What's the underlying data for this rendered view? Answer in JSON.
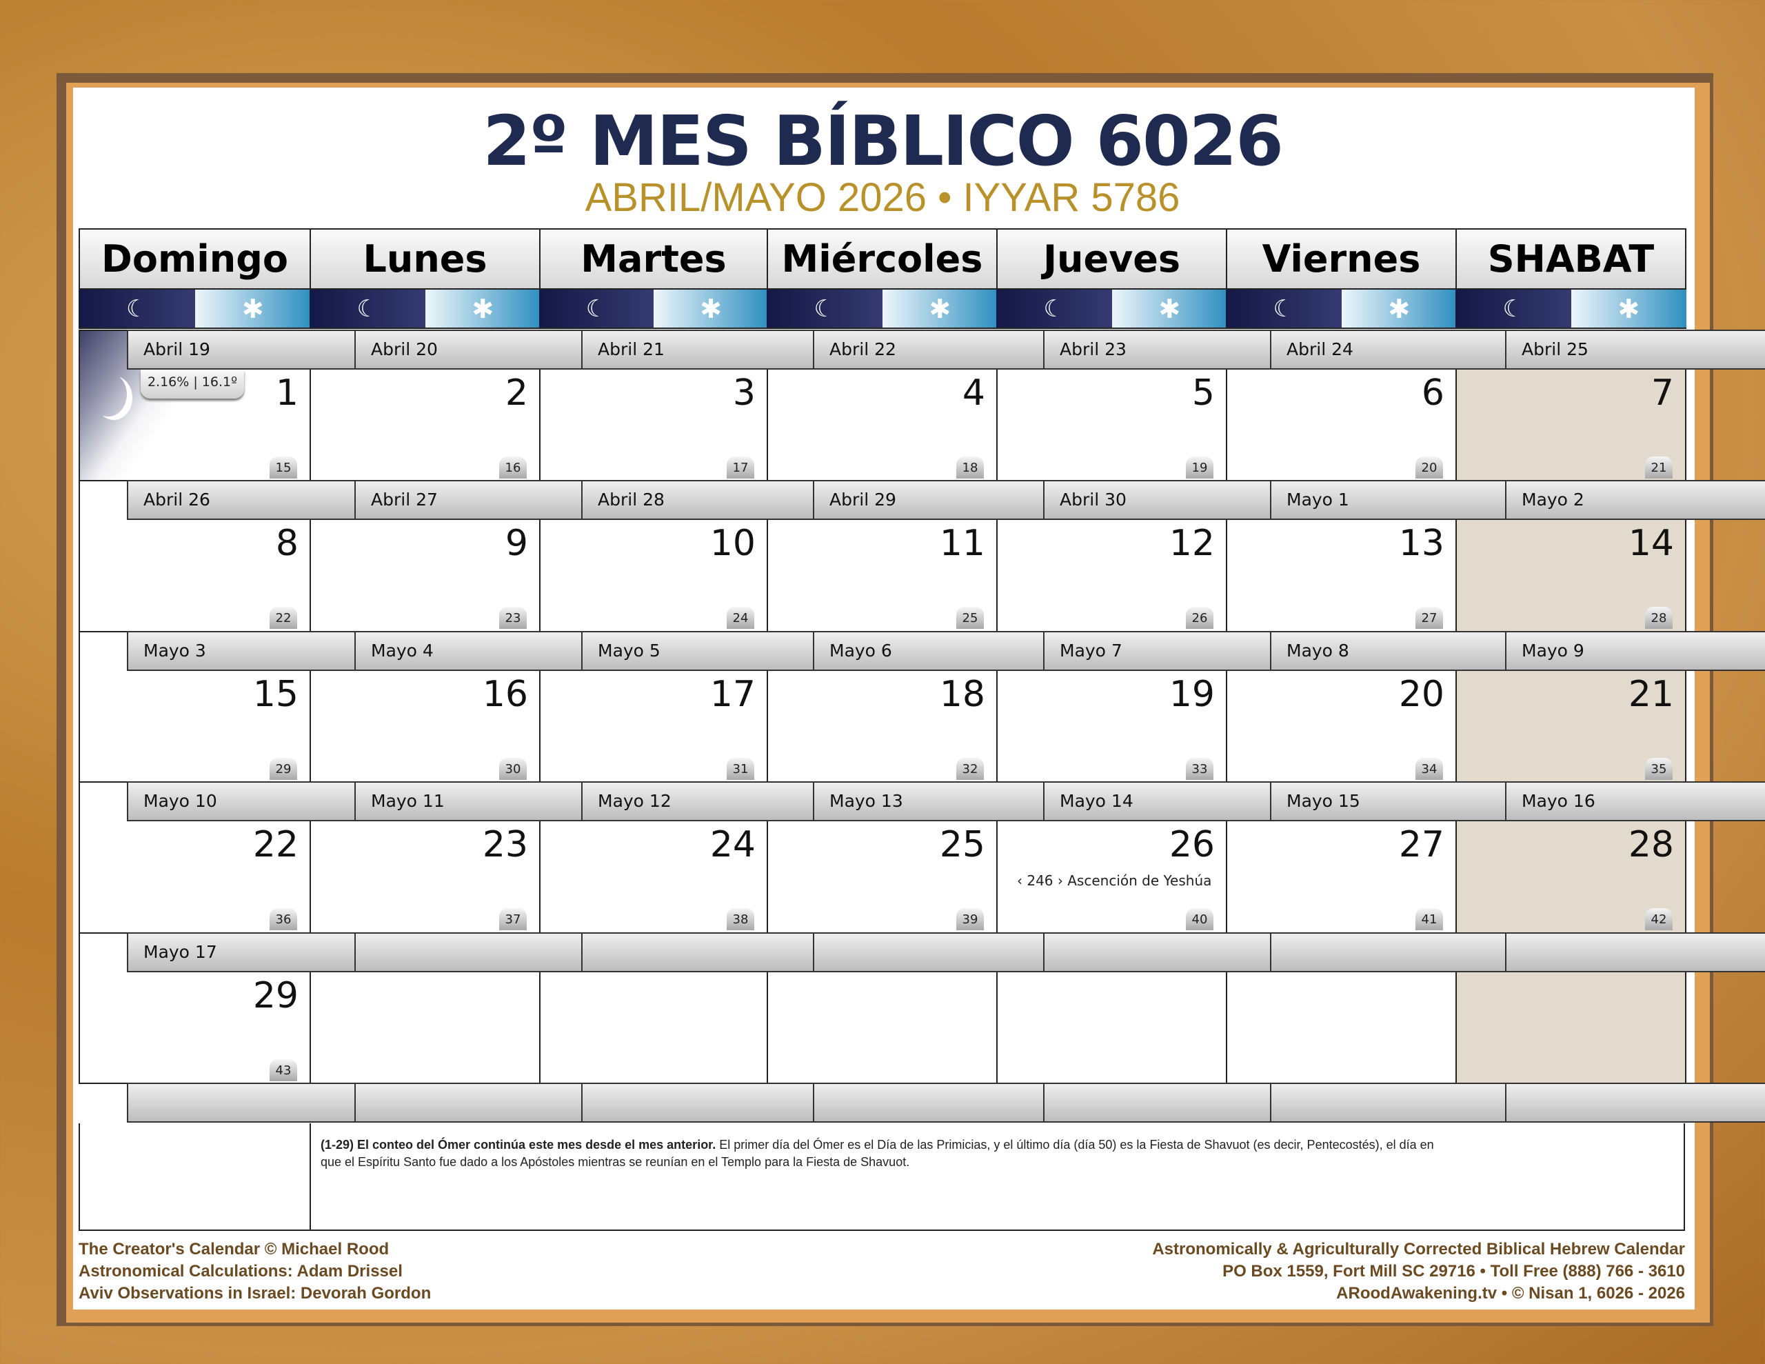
{
  "header": {
    "title": "2º MES BÍBLICO 6026",
    "subtitle": "ABRIL/MAYO 2026 • IYYAR 5786"
  },
  "days": [
    "Domingo",
    "Lunes",
    "Martes",
    "Miércoles",
    "Jueves",
    "Viernes",
    "SHABAT"
  ],
  "icons": {
    "night": "moon-icon",
    "day": "sun-icon"
  },
  "moon": {
    "illumination_label": "2.16% | 16.1º"
  },
  "colors": {
    "title": "#1e2a4f",
    "subtitle": "#b8912a",
    "shabat": "#e3dace",
    "footer": "#6b4a22"
  },
  "weeks": [
    [
      {
        "greg": "Abril 19",
        "day": "1",
        "omer": "15"
      },
      {
        "greg": "Abril 20",
        "day": "2",
        "omer": "16"
      },
      {
        "greg": "Abril 21",
        "day": "3",
        "omer": "17"
      },
      {
        "greg": "Abril 22",
        "day": "4",
        "omer": "18"
      },
      {
        "greg": "Abril 23",
        "day": "5",
        "omer": "19"
      },
      {
        "greg": "Abril 24",
        "day": "6",
        "omer": "20"
      },
      {
        "greg": "Abril 25",
        "day": "7",
        "omer": "21"
      }
    ],
    [
      {
        "greg": "Abril 26",
        "day": "8",
        "omer": "22"
      },
      {
        "greg": "Abril 27",
        "day": "9",
        "omer": "23"
      },
      {
        "greg": "Abril 28",
        "day": "10",
        "omer": "24"
      },
      {
        "greg": "Abril 29",
        "day": "11",
        "omer": "25"
      },
      {
        "greg": "Abril 30",
        "day": "12",
        "omer": "26"
      },
      {
        "greg": "Mayo 1",
        "day": "13",
        "omer": "27"
      },
      {
        "greg": "Mayo 2",
        "day": "14",
        "omer": "28"
      }
    ],
    [
      {
        "greg": "Mayo 3",
        "day": "15",
        "omer": "29"
      },
      {
        "greg": "Mayo 4",
        "day": "16",
        "omer": "30"
      },
      {
        "greg": "Mayo 5",
        "day": "17",
        "omer": "31"
      },
      {
        "greg": "Mayo 6",
        "day": "18",
        "omer": "32"
      },
      {
        "greg": "Mayo 7",
        "day": "19",
        "omer": "33"
      },
      {
        "greg": "Mayo 8",
        "day": "20",
        "omer": "34"
      },
      {
        "greg": "Mayo 9",
        "day": "21",
        "omer": "35"
      }
    ],
    [
      {
        "greg": "Mayo 10",
        "day": "22",
        "omer": "36"
      },
      {
        "greg": "Mayo 11",
        "day": "23",
        "omer": "37"
      },
      {
        "greg": "Mayo 12",
        "day": "24",
        "omer": "38"
      },
      {
        "greg": "Mayo 13",
        "day": "25",
        "omer": "39"
      },
      {
        "greg": "Mayo 14",
        "day": "26",
        "omer": "40",
        "note": "‹ 246 › Ascención de Yeshúa"
      },
      {
        "greg": "Mayo 15",
        "day": "27",
        "omer": "41"
      },
      {
        "greg": "Mayo 16",
        "day": "28",
        "omer": "42"
      }
    ],
    [
      {
        "greg": "Mayo 17",
        "day": "29",
        "omer": "43"
      },
      {},
      {},
      {},
      {},
      {},
      {}
    ]
  ],
  "footnote": {
    "bold": "(1-29) El conteo del Ómer continúa este mes desde el mes anterior.",
    "text": " El primer día del Ómer es el Día de las Primicias, y el último día (día 50) es la Fiesta de Shavuot (es decir, Pentecostés), el día en que el Espíritu Santo fue dado a los Apóstoles mientras se reunían en el Templo para la Fiesta de Shavuot."
  },
  "footer": {
    "left": [
      "The Creator's Calendar © Michael Rood",
      "Astronomical Calculations: Adam Drissel",
      "Aviv Observations in Israel: Devorah Gordon"
    ],
    "right": [
      "Astronomically & Agriculturally Corrected Biblical Hebrew Calendar",
      "PO Box 1559, Fort Mill SC 29716 • Toll Free (888) 766 - 3610",
      "ARoodAwakening.tv • © Nisan 1, 6026 - 2026"
    ]
  }
}
